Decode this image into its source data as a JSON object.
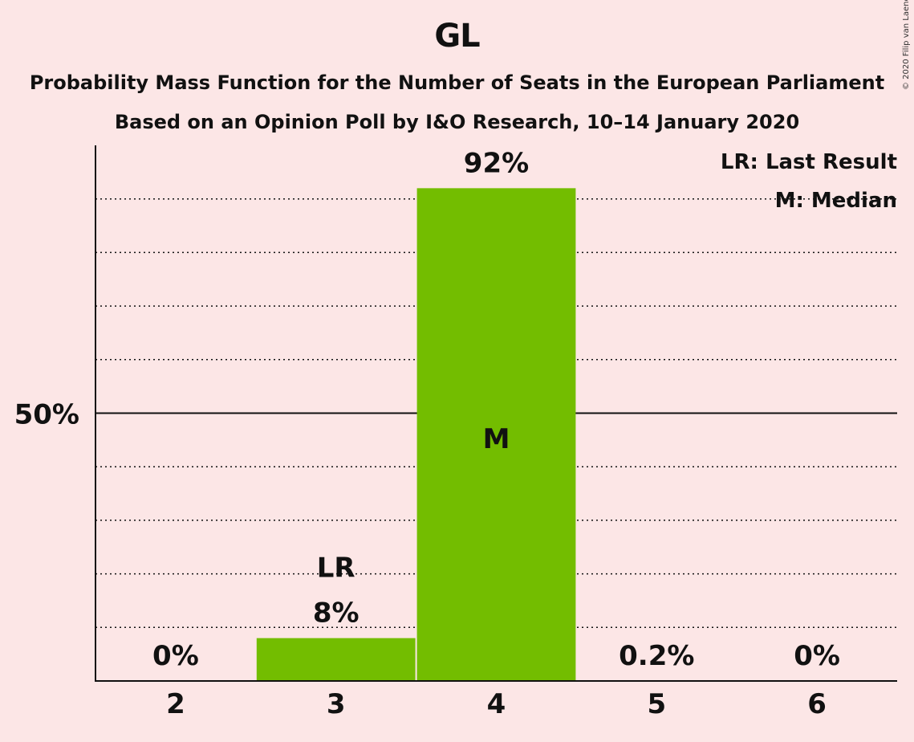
{
  "title": "GL",
  "subtitle1": "Probability Mass Function for the Number of Seats in the European Parliament",
  "subtitle2": "Based on an Opinion Poll by I&O Research, 10–14 January 2020",
  "copyright": "© 2020 Filip van Laenen",
  "legend": {
    "last_result": "LR: Last Result",
    "median": "M: Median"
  },
  "colors": {
    "background": "#fce6e6",
    "bar": "#73bd00",
    "median_text": "#fce6e6"
  },
  "chart_data": {
    "type": "bar",
    "categories": [
      "2",
      "3",
      "4",
      "5",
      "6"
    ],
    "values": [
      0,
      8,
      92,
      0.2,
      0
    ],
    "value_labels": [
      "0%",
      "8%",
      "92%",
      "0.2%",
      "0%"
    ],
    "ylim": [
      0,
      100
    ],
    "y_ticks": [
      {
        "value": 50,
        "label": "50%"
      }
    ],
    "gridlines": [
      10,
      20,
      30,
      40,
      60,
      70,
      80,
      90
    ],
    "last_result": {
      "category": "3",
      "label": "LR"
    },
    "median": {
      "category": "4",
      "label": "M"
    },
    "legend_position": "top-right"
  }
}
